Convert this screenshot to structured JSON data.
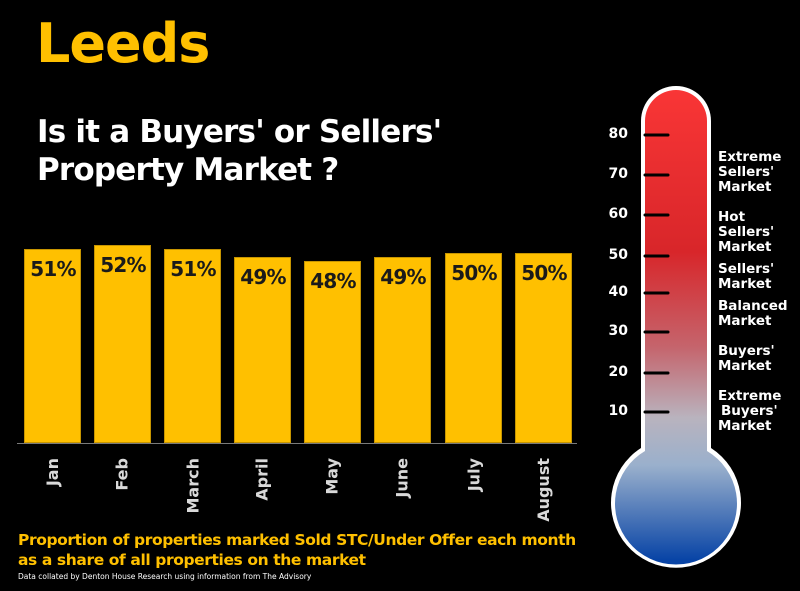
{
  "title": "Leeds",
  "headline": [
    "Is it a Buyers' or Sellers'",
    "Property Market ?"
  ],
  "caption": "Proportion of properties marked Sold STC/Under Offer each month as a share of all properties on the market",
  "source": "Data collated by Denton House Research using information from The Advisory",
  "colors": {
    "background": "#000000",
    "bar": "#FFC000",
    "title": "#FFC000",
    "thermo_top": "#F93434",
    "thermo_mid": "#D92A2A",
    "thermo_low": "#B8C4D4",
    "thermo_bulb": "#0A45A8"
  },
  "chart_data": {
    "type": "bar",
    "title": "Proportion of properties marked Sold STC/Under Offer each month as a share of all properties on the market",
    "categories": [
      "Jan",
      "Feb",
      "March",
      "April",
      "May",
      "June",
      "July",
      "August"
    ],
    "values": [
      51,
      52,
      51,
      49,
      48,
      49,
      50,
      50
    ],
    "value_labels": [
      "51%",
      "52%",
      "51%",
      "49%",
      "48%",
      "49%",
      "50%",
      "50%"
    ],
    "xlabel": "",
    "ylabel": "",
    "unit": "%",
    "grid": false,
    "legend": false,
    "x_tick_rotation": -90
  },
  "thermometer": {
    "ticks": [
      "80",
      "70",
      "60",
      "50",
      "40",
      "30",
      "20",
      "10"
    ],
    "zones": [
      {
        "lines": [
          "Extreme",
          "Sellers'",
          "Market"
        ]
      },
      {
        "lines": [
          "Hot",
          "Sellers'",
          "Market"
        ]
      },
      {
        "lines": [
          "Sellers'",
          "Market"
        ]
      },
      {
        "lines": [
          "Balanced",
          "Market"
        ]
      },
      {
        "lines": [
          "Buyers'",
          "Market"
        ]
      },
      {
        "lines": [
          "Extreme",
          "Buyers'",
          "Market"
        ]
      }
    ]
  }
}
